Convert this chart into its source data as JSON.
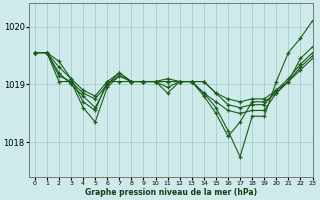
{
  "title": "Graphe pression niveau de la mer (hPa)",
  "background_color": "#ceeaea",
  "grid_color": "#aacccc",
  "line_color": "#1a5c1a",
  "xlim": [
    -0.5,
    23
  ],
  "ylim": [
    1017.4,
    1020.4
  ],
  "yticks": [
    1018,
    1019,
    1020
  ],
  "ytick_labels": [
    "1018",
    "1019",
    "1020"
  ],
  "xticks": [
    0,
    1,
    2,
    3,
    4,
    5,
    6,
    7,
    8,
    9,
    10,
    11,
    12,
    13,
    14,
    15,
    16,
    17,
    18,
    19,
    20,
    21,
    22,
    23
  ],
  "series": [
    [
      1019.55,
      1019.55,
      1019.15,
      1019.05,
      1018.85,
      1018.75,
      1019.0,
      1019.15,
      1019.05,
      1019.05,
      1019.05,
      1018.95,
      1019.05,
      1019.05,
      1019.05,
      1018.85,
      1018.65,
      1018.6,
      1018.65,
      1018.65,
      1018.9,
      1019.1,
      1019.35,
      1019.55
    ],
    [
      1019.55,
      1019.55,
      1019.2,
      1019.0,
      1018.8,
      1018.6,
      1019.0,
      1019.2,
      1019.05,
      1019.05,
      1019.05,
      1019.05,
      1019.05,
      1019.05,
      1018.85,
      1018.6,
      1018.2,
      1017.75,
      1018.45,
      1018.45,
      1019.05,
      1019.55,
      1019.8,
      1020.1
    ],
    [
      1019.55,
      1019.55,
      1019.3,
      1019.1,
      1018.7,
      1018.55,
      1019.05,
      1019.2,
      1019.05,
      1019.05,
      1019.05,
      1019.1,
      1019.05,
      1019.05,
      1018.85,
      1018.7,
      1018.55,
      1018.5,
      1018.55,
      1018.55,
      1018.85,
      1019.05,
      1019.3,
      1019.5
    ],
    [
      1019.55,
      1019.55,
      1019.05,
      1019.05,
      1018.6,
      1018.35,
      1018.95,
      1019.15,
      1019.05,
      1019.05,
      1019.05,
      1018.85,
      1019.05,
      1019.05,
      1018.8,
      1018.5,
      1018.1,
      1018.35,
      1018.7,
      1018.7,
      1018.85,
      1019.05,
      1019.25,
      1019.45
    ],
    [
      1019.55,
      1019.55,
      1019.4,
      1019.1,
      1018.9,
      1018.8,
      1019.05,
      1019.05,
      1019.05,
      1019.05,
      1019.05,
      1019.05,
      1019.05,
      1019.05,
      1019.05,
      1018.85,
      1018.75,
      1018.7,
      1018.75,
      1018.75,
      1018.9,
      1019.05,
      1019.45,
      1019.65
    ]
  ]
}
